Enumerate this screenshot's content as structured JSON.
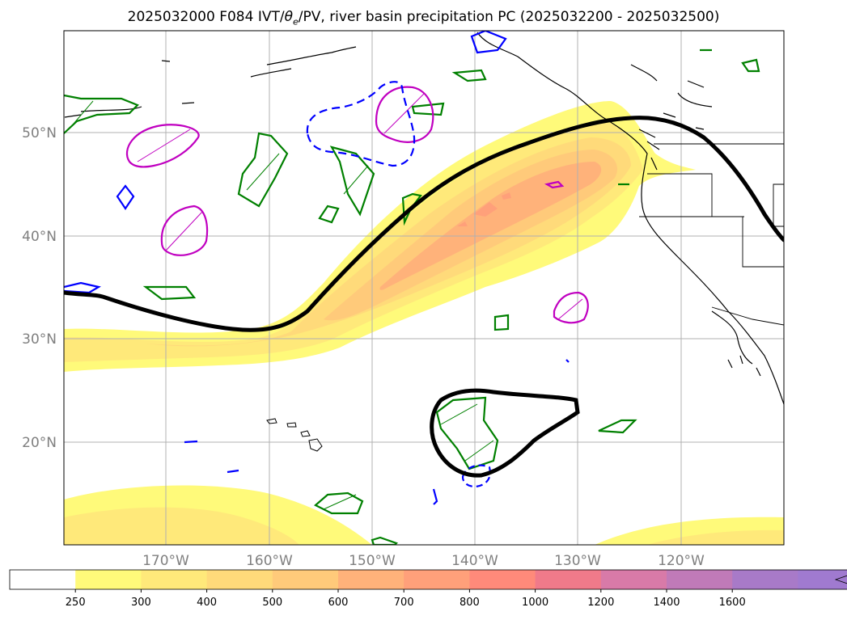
{
  "title_main": "2025032000 F084 IVT/",
  "title_theta": "θ",
  "title_sub": "e",
  "title_rest": "/PV, river basin precipitation PC (2025032200 - 2025032500)",
  "lat_labels": [
    "50°N",
    "40°N",
    "30°N",
    "20°N"
  ],
  "lon_labels": [
    "170°W",
    "160°W",
    "150°W",
    "140°W",
    "130°W",
    "120°W"
  ],
  "colorbar": {
    "ticks": [
      "250",
      "300",
      "400",
      "500",
      "600",
      "700",
      "800",
      "1000",
      "1200",
      "1400",
      "1600"
    ],
    "colors": [
      "#ffffff",
      "#fffa7a",
      "#ffe97a",
      "#ffda7a",
      "#ffca7a",
      "#ffb27a",
      "#ffa07a",
      "#ff8a7a",
      "#f07a8a",
      "#d87aa8",
      "#c07ab8",
      "#a87ac8",
      "#a07ad0"
    ],
    "extend": "max"
  },
  "colors": {
    "ivt_fill": [
      "#fffa7a",
      "#ffe97a",
      "#ffda7a",
      "#ffca7a",
      "#ffb27a",
      "#ffa07a"
    ],
    "theta_e": "#000000",
    "pv_positive": "#c000c0",
    "pv_blue": "#0000ff",
    "precip_pc": "#008000",
    "coast": "#000000",
    "grid": "#b0b0b0"
  }
}
